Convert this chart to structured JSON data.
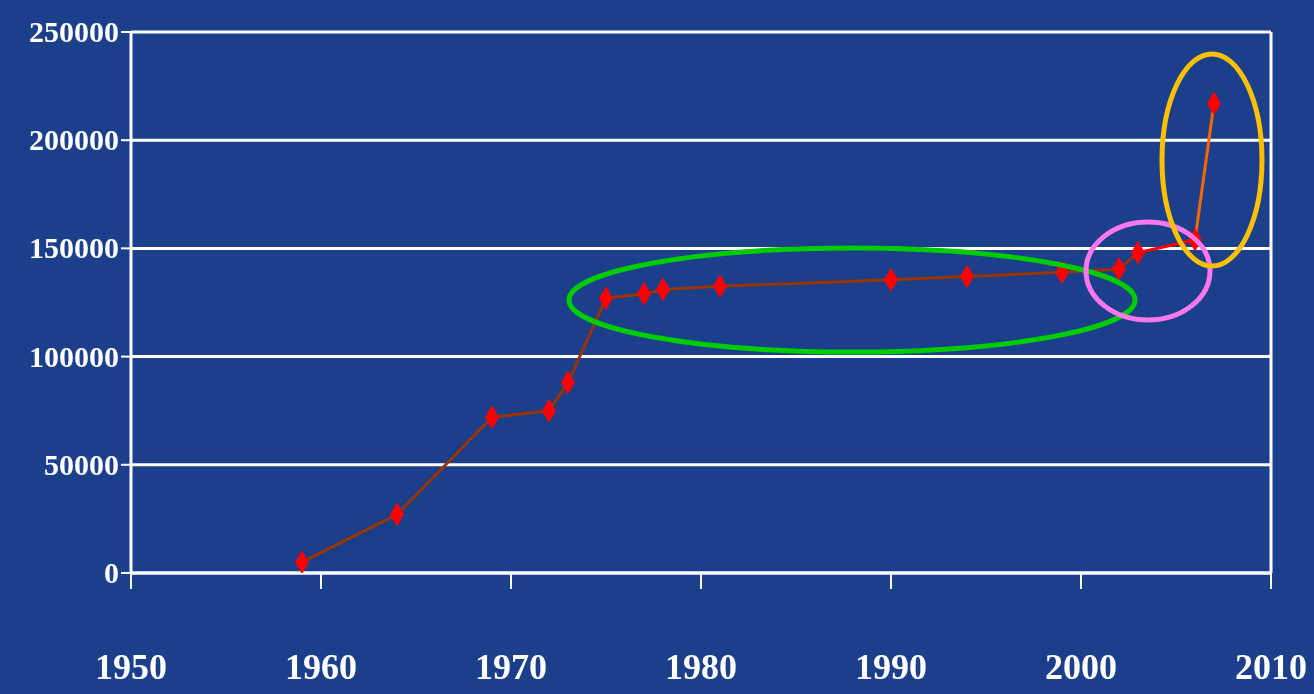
{
  "chart_data": {
    "type": "line",
    "series": [
      {
        "color": "#993300",
        "marker": "none",
        "x": [
          1959,
          1964,
          1969,
          1972,
          1973,
          1975,
          1977,
          1978,
          1981,
          1990,
          1994,
          1999,
          2002,
          2003
        ],
        "values": [
          5000,
          27000,
          72000,
          75000,
          88000,
          127000,
          129000,
          131000,
          132500,
          135500,
          137000,
          139000,
          140500,
          148000
        ]
      },
      {
        "color": "#ff0000",
        "marker": "none",
        "x": [
          2003,
          2006
        ],
        "values": [
          148000,
          154000
        ]
      },
      {
        "color": "#ff6600",
        "marker": "none",
        "x": [
          2006,
          2007
        ],
        "values": [
          154000,
          217000
        ]
      },
      {
        "type": "scatter",
        "color": "#ff0000",
        "marker": "diamond",
        "x": [
          1959,
          1964,
          1969,
          1972,
          1973,
          1975,
          1977,
          1978,
          1981,
          1990,
          1994,
          1999,
          2002,
          2003,
          2006,
          2007
        ],
        "values": [
          5000,
          27000,
          72000,
          75000,
          88000,
          127000,
          129000,
          131000,
          132500,
          135500,
          137000,
          139000,
          140500,
          148000,
          154000,
          217000
        ]
      }
    ],
    "xlim": [
      1950,
      2010
    ],
    "xticks": [
      1950,
      1960,
      1970,
      1980,
      1990,
      2000,
      2010
    ],
    "ylim": [
      0,
      250000
    ],
    "yticks": [
      0,
      50000,
      100000,
      150000,
      200000,
      250000
    ],
    "grid": "y"
  }
}
